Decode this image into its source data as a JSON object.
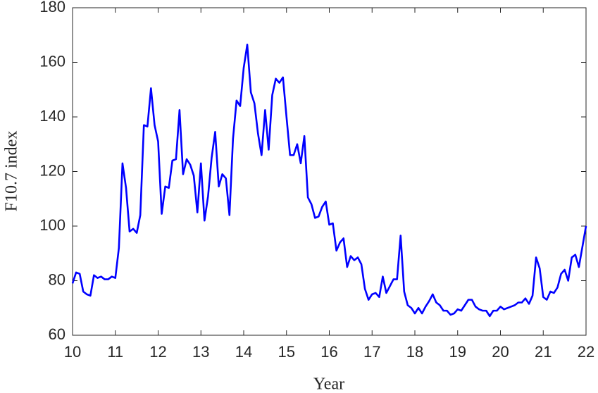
{
  "chart_data": {
    "type": "line",
    "xlabel": "Year",
    "ylabel": "F10.7 index",
    "xlim": [
      10,
      22
    ],
    "xticks": [
      10,
      11,
      12,
      13,
      14,
      15,
      16,
      17,
      18,
      19,
      20,
      21,
      22
    ],
    "ylim": [
      60,
      180
    ],
    "yticks": [
      60,
      80,
      100,
      120,
      140,
      160,
      180
    ],
    "x": [
      10,
      10.083,
      10.167,
      10.25,
      10.333,
      10.417,
      10.5,
      10.583,
      10.667,
      10.75,
      10.833,
      10.917,
      11,
      11.083,
      11.167,
      11.25,
      11.333,
      11.417,
      11.5,
      11.583,
      11.667,
      11.75,
      11.833,
      11.917,
      12,
      12.083,
      12.167,
      12.25,
      12.333,
      12.417,
      12.5,
      12.583,
      12.667,
      12.75,
      12.833,
      12.917,
      13,
      13.083,
      13.167,
      13.25,
      13.333,
      13.417,
      13.5,
      13.583,
      13.667,
      13.75,
      13.833,
      13.917,
      14,
      14.083,
      14.167,
      14.25,
      14.333,
      14.417,
      14.5,
      14.583,
      14.667,
      14.75,
      14.833,
      14.917,
      15,
      15.083,
      15.167,
      15.25,
      15.333,
      15.417,
      15.5,
      15.583,
      15.667,
      15.75,
      15.833,
      15.917,
      16,
      16.083,
      16.167,
      16.25,
      16.333,
      16.417,
      16.5,
      16.583,
      16.667,
      16.75,
      16.833,
      16.917,
      17,
      17.083,
      17.167,
      17.25,
      17.333,
      17.417,
      17.5,
      17.583,
      17.667,
      17.75,
      17.833,
      17.917,
      18,
      18.083,
      18.167,
      18.25,
      18.333,
      18.417,
      18.5,
      18.583,
      18.667,
      18.75,
      18.833,
      18.917,
      19,
      19.083,
      19.167,
      19.25,
      19.333,
      19.417,
      19.5,
      19.583,
      19.667,
      19.75,
      19.833,
      19.917,
      20,
      20.083,
      20.167,
      20.25,
      20.333,
      20.417,
      20.5,
      20.583,
      20.667,
      20.75,
      20.833,
      20.917,
      21,
      21.083,
      21.167,
      21.25,
      21.333,
      21.417,
      21.5,
      21.583,
      21.667,
      21.75,
      21.833,
      22
    ],
    "series": [
      {
        "color": "#0000ff",
        "values": [
          79,
          83,
          82.5,
          76,
          75,
          74.5,
          82,
          81,
          81.5,
          80.5,
          80.5,
          81.5,
          81,
          92,
          123,
          114,
          98,
          99,
          97.5,
          104,
          137,
          136.5,
          150.5,
          137,
          131,
          104.5,
          114.5,
          114,
          124,
          124.5,
          142.5,
          119,
          124.5,
          122.5,
          118.5,
          105,
          123,
          102,
          111,
          125,
          134.5,
          114.5,
          119,
          117.5,
          104,
          132,
          146,
          144,
          158,
          166.5,
          149,
          145,
          134,
          126,
          142.5,
          128,
          148,
          154,
          152.5,
          154.5,
          140,
          126,
          126,
          130,
          123,
          133,
          110.5,
          108,
          103,
          103.5,
          107,
          109,
          100.5,
          101,
          91,
          94,
          95.5,
          85,
          89,
          87.5,
          88.5,
          86,
          77,
          73,
          75,
          75.5,
          74,
          81.5,
          75.5,
          78,
          80.5,
          80.5,
          96.5,
          76,
          71,
          70,
          68,
          70,
          68,
          70.5,
          72.5,
          75,
          72,
          71,
          69,
          69,
          67.5,
          68,
          69.5,
          69,
          71,
          73,
          73,
          70.5,
          69.5,
          69,
          69,
          67,
          69,
          69,
          70.5,
          69.5,
          70,
          70.5,
          71,
          72,
          72,
          73.5,
          71.5,
          74.5,
          88.5,
          84.5,
          74,
          73,
          76,
          75.5,
          77.5,
          82.5,
          84,
          80,
          88.5,
          89.5,
          85,
          100
        ]
      }
    ]
  }
}
